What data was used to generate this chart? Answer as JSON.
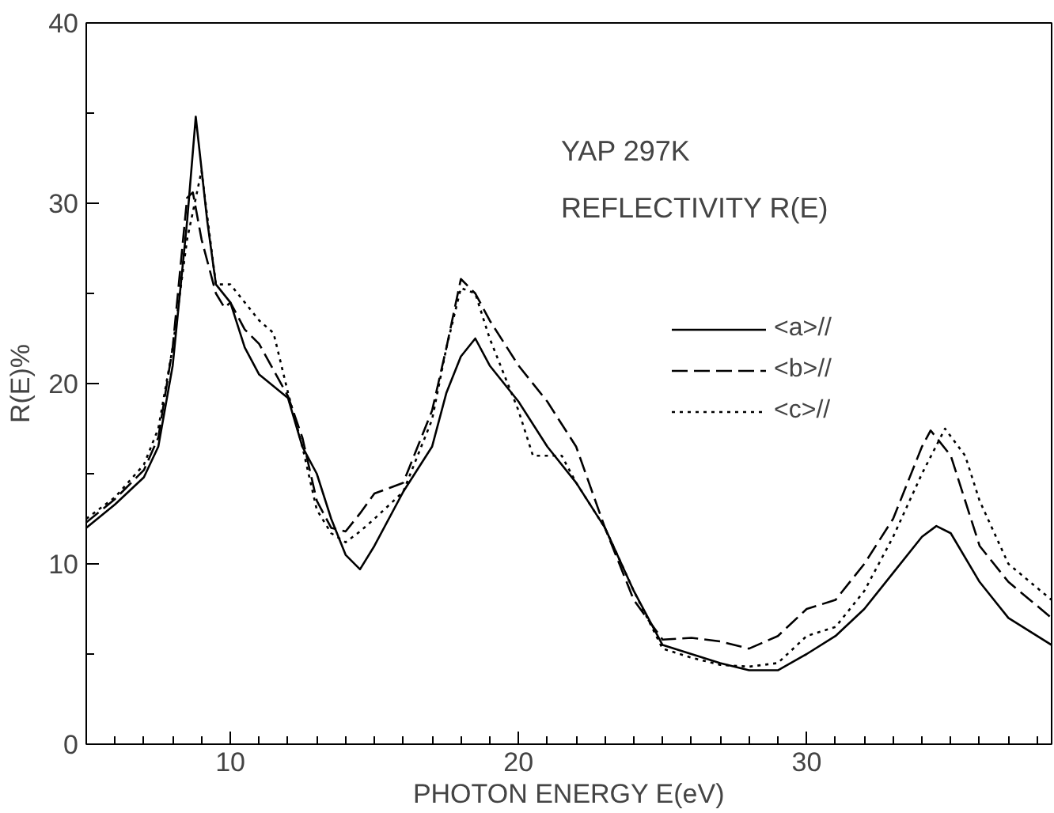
{
  "chart_data": {
    "type": "line",
    "xlabel": "PHOTON ENERGY E(eV)",
    "ylabel": "R(E)%",
    "annotations": [
      "YAP  297K",
      "REFLECTIVITY R(E)"
    ],
    "xlim": [
      5,
      38.5
    ],
    "ylim": [
      0,
      40
    ],
    "xticks": [
      {
        "value": 5,
        "label": null
      },
      {
        "value": 6,
        "label": null
      },
      {
        "value": 7,
        "label": null
      },
      {
        "value": 8,
        "label": null
      },
      {
        "value": 9,
        "label": null
      },
      10,
      {
        "value": 11,
        "label": null
      },
      {
        "value": 12,
        "label": null
      },
      {
        "value": 13,
        "label": null
      },
      {
        "value": 14,
        "label": null
      },
      {
        "value": 15,
        "label": null
      },
      {
        "value": 16,
        "label": null
      },
      {
        "value": 17,
        "label": null
      },
      {
        "value": 18,
        "label": null
      },
      {
        "value": 19,
        "label": null
      },
      20,
      {
        "value": 21,
        "label": null
      },
      {
        "value": 22,
        "label": null
      },
      {
        "value": 23,
        "label": null
      },
      {
        "value": 24,
        "label": null
      },
      {
        "value": 25,
        "label": null
      },
      {
        "value": 26,
        "label": null
      },
      {
        "value": 27,
        "label": null
      },
      {
        "value": 28,
        "label": null
      },
      {
        "value": 29,
        "label": null
      },
      30,
      {
        "value": 31,
        "label": null
      },
      {
        "value": 32,
        "label": null
      },
      {
        "value": 33,
        "label": null
      },
      {
        "value": 34,
        "label": null
      },
      {
        "value": 35,
        "label": null
      },
      {
        "value": 36,
        "label": null
      },
      {
        "value": 37,
        "label": null
      },
      {
        "value": 38,
        "label": null
      }
    ],
    "yticks": [
      0,
      {
        "value": 5,
        "label": null
      },
      10,
      {
        "value": 15,
        "label": null
      },
      20,
      {
        "value": 25,
        "label": null
      },
      30,
      {
        "value": 35,
        "label": null
      },
      40
    ],
    "grid": false,
    "legend": "top right",
    "marker": "none",
    "series": [
      {
        "name": "<a>//",
        "color": "#000000",
        "line_style": "solid",
        "x": [
          5,
          6,
          7,
          7.5,
          8,
          8.5,
          8.8,
          9.2,
          9.5,
          10,
          10.5,
          11,
          12,
          12.5,
          13,
          13.5,
          14,
          14.5,
          15,
          16,
          17,
          17.5,
          18,
          18.5,
          19,
          20,
          21,
          22,
          23,
          24,
          25,
          26,
          27,
          28,
          29,
          30,
          31,
          32,
          33,
          34,
          34.5,
          35,
          36,
          37,
          38.5
        ],
        "values": [
          12.0,
          13.3,
          14.8,
          16.5,
          21,
          29,
          34.8,
          29,
          25.5,
          24.5,
          22,
          20.5,
          19.2,
          16.5,
          15,
          12.5,
          10.5,
          9.7,
          11,
          14,
          16.5,
          19.5,
          21.5,
          22.5,
          21,
          19,
          16.5,
          14.5,
          12,
          8.5,
          5.5,
          5,
          4.5,
          4.1,
          4.1,
          5,
          6,
          7.5,
          9.5,
          11.5,
          12.1,
          11.7,
          9,
          7,
          5.5
        ]
      },
      {
        "name": "<b>//",
        "color": "#000000",
        "line_style": "dashed",
        "x": [
          5,
          6,
          7,
          7.5,
          8,
          8.5,
          8.7,
          9,
          9.5,
          9.8,
          10,
          10.5,
          11,
          12,
          12.5,
          13,
          13.5,
          14,
          14.5,
          15,
          16,
          17,
          17.5,
          18,
          18.5,
          19,
          20,
          21,
          22,
          23,
          24,
          25,
          26,
          27,
          28,
          29,
          30,
          31,
          32,
          33,
          34,
          34.3,
          35,
          36,
          37,
          38.5
        ],
        "values": [
          12.3,
          13.6,
          15.2,
          17,
          22,
          30.3,
          30.6,
          28,
          25,
          24.2,
          24.5,
          23,
          22.2,
          19.3,
          17,
          13.5,
          12,
          11.8,
          12.8,
          13.9,
          14.5,
          18.5,
          22,
          25.8,
          25,
          23.5,
          21,
          19,
          16.5,
          12,
          8,
          5.8,
          5.9,
          5.7,
          5.3,
          6,
          7.5,
          8,
          10,
          12.5,
          16.5,
          17.4,
          16,
          11,
          9,
          7
        ]
      },
      {
        "name": "<c>//",
        "color": "#000000",
        "line_style": "dotted",
        "x": [
          5,
          6,
          7,
          7.5,
          8,
          8.5,
          9,
          9.3,
          9.5,
          10,
          10.5,
          11,
          11.5,
          12,
          12.5,
          13,
          13.5,
          14,
          14.5,
          15,
          16,
          17,
          17.5,
          18,
          18.5,
          19,
          20,
          20.5,
          21.5,
          22,
          23,
          24,
          25,
          26,
          27,
          28,
          29,
          30,
          31,
          32,
          33,
          34,
          34.8,
          35.5,
          36,
          37,
          38.5
        ],
        "values": [
          12.5,
          13.7,
          15.5,
          17.5,
          22,
          28,
          31.8,
          28,
          25.5,
          25.5,
          24.5,
          23.5,
          22.8,
          19.5,
          16.5,
          13,
          11.7,
          11.2,
          11.8,
          12.5,
          14,
          18,
          22,
          25.3,
          25,
          22.5,
          18.5,
          16,
          16,
          14.5,
          12,
          8.5,
          5.3,
          4.8,
          4.4,
          4.3,
          4.5,
          6,
          6.5,
          8.5,
          11.5,
          15,
          17.5,
          16,
          13.5,
          10,
          8
        ]
      }
    ]
  }
}
